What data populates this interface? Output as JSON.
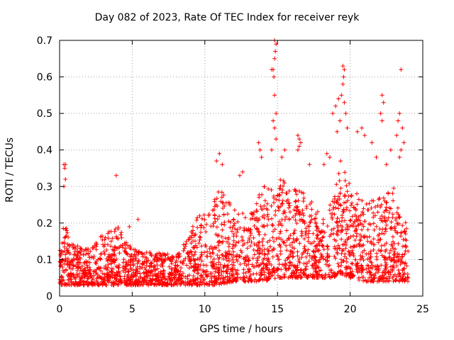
{
  "chart_data": {
    "type": "scatter",
    "title": "Day 082 of 2023, Rate Of TEC Index for receiver reyk",
    "xlabel": "GPS time / hours",
    "ylabel": "ROTI / TECUs",
    "xlim": [
      0,
      25
    ],
    "ylim": [
      0,
      0.7
    ],
    "xticks": [
      0,
      5,
      10,
      15,
      20,
      25
    ],
    "yticks": [
      0,
      0.1,
      0.2,
      0.3,
      0.4,
      0.5,
      0.6,
      0.7
    ],
    "xtick_labels": [
      "0",
      "5",
      "10",
      "15",
      "20",
      "25"
    ],
    "ytick_labels": [
      "0",
      "0.1",
      "0.2",
      "0.3",
      "0.4",
      "0.5",
      "0.6",
      "0.7"
    ],
    "grid": true,
    "marker": "+",
    "color": "#ff0000",
    "envelope": [
      [
        0.0,
        0.03,
        0.12
      ],
      [
        0.3,
        0.03,
        0.22
      ],
      [
        0.6,
        0.03,
        0.16
      ],
      [
        1.0,
        0.03,
        0.14
      ],
      [
        2.0,
        0.03,
        0.13
      ],
      [
        3.0,
        0.03,
        0.17
      ],
      [
        4.0,
        0.03,
        0.19
      ],
      [
        5.0,
        0.03,
        0.13
      ],
      [
        6.0,
        0.03,
        0.12
      ],
      [
        7.0,
        0.03,
        0.12
      ],
      [
        8.0,
        0.03,
        0.11
      ],
      [
        8.8,
        0.03,
        0.16
      ],
      [
        9.5,
        0.03,
        0.22
      ],
      [
        10.5,
        0.03,
        0.26
      ],
      [
        11.0,
        0.03,
        0.3
      ],
      [
        12.0,
        0.04,
        0.24
      ],
      [
        13.0,
        0.04,
        0.22
      ],
      [
        14.0,
        0.04,
        0.3
      ],
      [
        15.0,
        0.05,
        0.33
      ],
      [
        16.0,
        0.05,
        0.3
      ],
      [
        17.0,
        0.05,
        0.28
      ],
      [
        18.0,
        0.05,
        0.22
      ],
      [
        18.8,
        0.05,
        0.28
      ],
      [
        19.4,
        0.06,
        0.38
      ],
      [
        20.0,
        0.05,
        0.3
      ],
      [
        21.0,
        0.04,
        0.26
      ],
      [
        22.0,
        0.04,
        0.28
      ],
      [
        23.0,
        0.04,
        0.3
      ],
      [
        23.6,
        0.04,
        0.24
      ],
      [
        24.0,
        0.04,
        0.2
      ]
    ],
    "outliers": [
      [
        0.3,
        0.36
      ],
      [
        0.35,
        0.35
      ],
      [
        0.4,
        0.36
      ],
      [
        0.4,
        0.32
      ],
      [
        0.3,
        0.3
      ],
      [
        3.9,
        0.33
      ],
      [
        5.4,
        0.21
      ],
      [
        4.8,
        0.19
      ],
      [
        14.8,
        0.7
      ],
      [
        14.9,
        0.69
      ],
      [
        14.85,
        0.67
      ],
      [
        14.8,
        0.65
      ],
      [
        14.7,
        0.62
      ],
      [
        14.75,
        0.6
      ],
      [
        14.8,
        0.55
      ],
      [
        14.9,
        0.5
      ],
      [
        14.7,
        0.48
      ],
      [
        14.8,
        0.46
      ],
      [
        14.6,
        0.62
      ],
      [
        14.9,
        0.43
      ],
      [
        14.6,
        0.4
      ],
      [
        13.7,
        0.42
      ],
      [
        13.8,
        0.4
      ],
      [
        13.9,
        0.38
      ],
      [
        16.4,
        0.44
      ],
      [
        16.5,
        0.43
      ],
      [
        16.6,
        0.42
      ],
      [
        16.5,
        0.41
      ],
      [
        16.4,
        0.4
      ],
      [
        19.5,
        0.63
      ],
      [
        19.6,
        0.62
      ],
      [
        19.55,
        0.6
      ],
      [
        19.5,
        0.58
      ],
      [
        19.4,
        0.55
      ],
      [
        19.6,
        0.53
      ],
      [
        19.2,
        0.54
      ],
      [
        19.0,
        0.52
      ],
      [
        18.8,
        0.5
      ],
      [
        19.3,
        0.48
      ],
      [
        19.7,
        0.5
      ],
      [
        19.8,
        0.46
      ],
      [
        19.1,
        0.45
      ],
      [
        22.2,
        0.55
      ],
      [
        22.3,
        0.53
      ],
      [
        22.1,
        0.5
      ],
      [
        22.2,
        0.48
      ],
      [
        23.5,
        0.62
      ],
      [
        23.4,
        0.5
      ],
      [
        23.3,
        0.48
      ],
      [
        23.6,
        0.46
      ],
      [
        23.2,
        0.44
      ],
      [
        23.7,
        0.42
      ],
      [
        23.5,
        0.4
      ],
      [
        23.4,
        0.38
      ],
      [
        20.8,
        0.46
      ],
      [
        21.0,
        0.44
      ],
      [
        21.5,
        0.42
      ],
      [
        20.5,
        0.45
      ],
      [
        11.0,
        0.39
      ],
      [
        10.8,
        0.37
      ],
      [
        11.2,
        0.36
      ],
      [
        12.6,
        0.34
      ],
      [
        12.4,
        0.33
      ],
      [
        18.4,
        0.39
      ],
      [
        18.6,
        0.38
      ],
      [
        18.2,
        0.36
      ],
      [
        15.5,
        0.4
      ],
      [
        15.3,
        0.38
      ],
      [
        17.2,
        0.36
      ],
      [
        21.8,
        0.38
      ],
      [
        22.5,
        0.36
      ],
      [
        22.8,
        0.4
      ]
    ]
  }
}
